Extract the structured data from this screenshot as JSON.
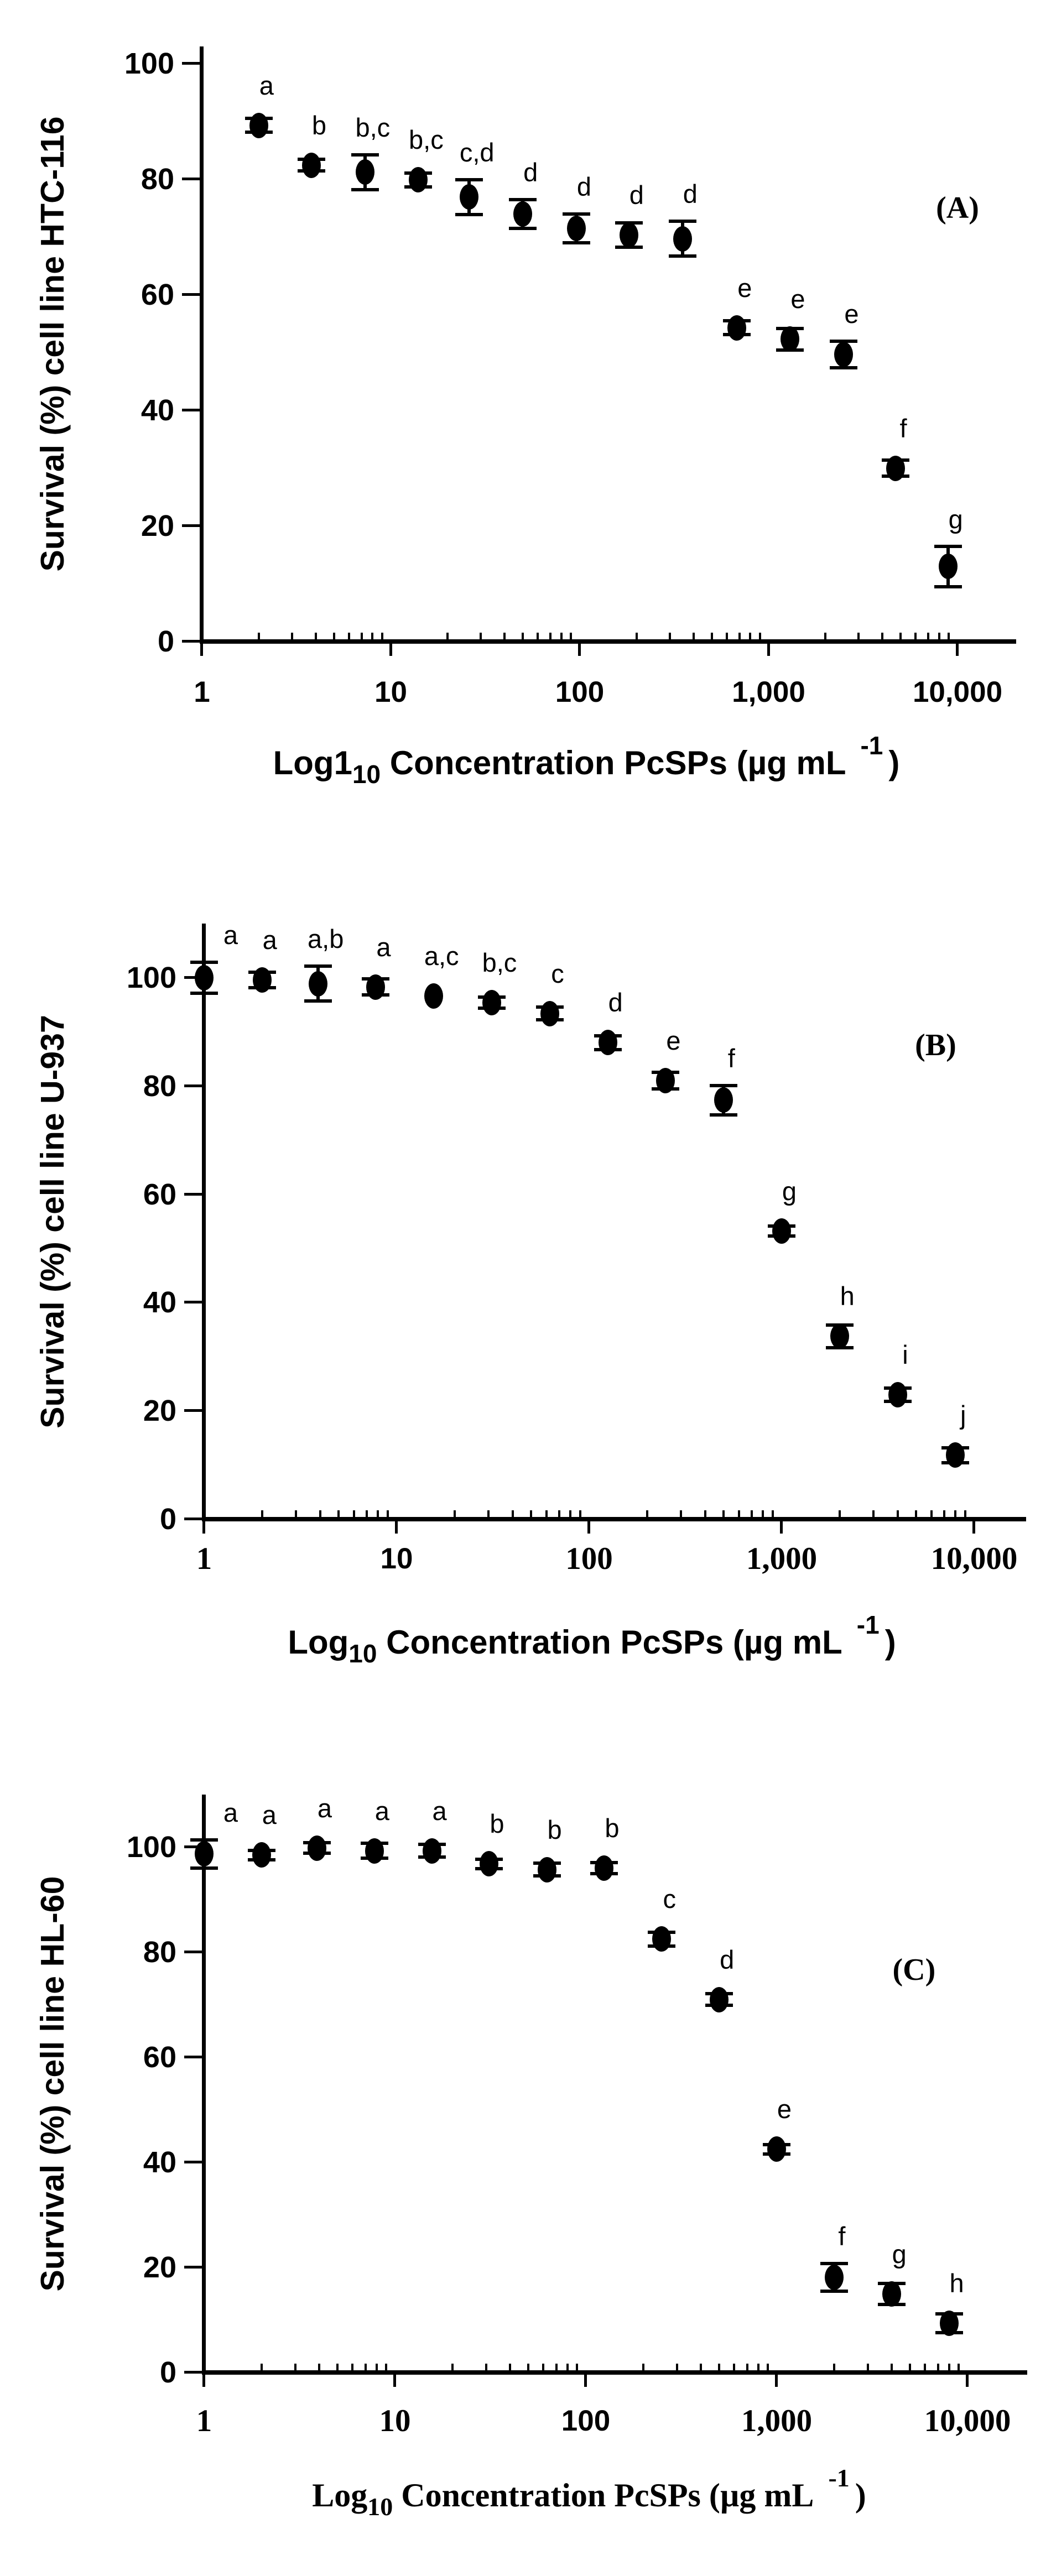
{
  "page": {
    "background": "#ffffff",
    "ink_color": "#000000"
  },
  "chart_data": [
    {
      "type": "scatter",
      "panel": "A",
      "annotation": "(A)",
      "annotation_pos": {
        "logx": 4.0,
        "y": 75
      },
      "title": "",
      "ylabel": "Survival (%) cell line HTC-116",
      "xlabel": {
        "prefix": "Log1",
        "sub": "10",
        "mid": " Concentration PcSPs (µg mL",
        "sup": "-1",
        "end": ")"
      },
      "x_scale": "log10",
      "xlim": [
        1,
        20000
      ],
      "ylim": [
        0,
        103
      ],
      "x_ticks": [
        "1",
        "10",
        "100",
        "1,000",
        "10,000"
      ],
      "y_ticks": [
        0,
        20,
        40,
        60,
        80,
        100
      ],
      "grid": false,
      "marker": "filled-circle",
      "points": [
        {
          "x": 2,
          "y": 89.3,
          "err": 1.2,
          "sig": "a"
        },
        {
          "x": 3.8,
          "y": 82.4,
          "err": 1.0,
          "sig": "b"
        },
        {
          "x": 7.3,
          "y": 81.2,
          "err": 3.0,
          "sig": "b,c"
        },
        {
          "x": 14,
          "y": 79.9,
          "err": 1.2,
          "sig": "b,c"
        },
        {
          "x": 26,
          "y": 76.9,
          "err": 3.0,
          "sig": "c,d"
        },
        {
          "x": 50,
          "y": 74.0,
          "err": 2.5,
          "sig": "d"
        },
        {
          "x": 96,
          "y": 71.5,
          "err": 2.5,
          "sig": "d"
        },
        {
          "x": 182,
          "y": 70.3,
          "err": 2.1,
          "sig": "d"
        },
        {
          "x": 350,
          "y": 69.7,
          "err": 3.0,
          "sig": "d"
        },
        {
          "x": 680,
          "y": 54.3,
          "err": 1.2,
          "sig": "e"
        },
        {
          "x": 1300,
          "y": 52.3,
          "err": 1.9,
          "sig": "e"
        },
        {
          "x": 2500,
          "y": 49.7,
          "err": 2.3,
          "sig": "e"
        },
        {
          "x": 4700,
          "y": 30.0,
          "err": 1.4,
          "sig": "f"
        },
        {
          "x": 8900,
          "y": 13.0,
          "err": 3.5,
          "sig": "g"
        }
      ]
    },
    {
      "type": "scatter",
      "panel": "B",
      "annotation": "(B)",
      "annotation_pos": {
        "logx": 3.8,
        "y": 87.5
      },
      "title": "",
      "ylabel": "Survival (%) cell line U-937",
      "xlabel": {
        "prefix": "Log",
        "sub": "10",
        "mid": " Concentration PcSPs (µg mL",
        "sup": "-1",
        "end": ")"
      },
      "x_scale": "log10",
      "xlim": [
        1,
        20000
      ],
      "ylim": [
        0,
        110
      ],
      "x_ticks": [
        "1",
        "10",
        "100",
        "1,000",
        "10,000"
      ],
      "y_ticks": [
        0,
        20,
        40,
        60,
        80,
        100
      ],
      "grid": false,
      "marker": "filled-circle",
      "points": [
        {
          "x": 1,
          "y": 100.0,
          "err": 2.9,
          "sig": "a"
        },
        {
          "x": 2,
          "y": 99.6,
          "err": 1.4,
          "sig": "a"
        },
        {
          "x": 3.9,
          "y": 98.9,
          "err": 3.2,
          "sig": "a,b"
        },
        {
          "x": 7.8,
          "y": 98.3,
          "err": 1.5,
          "sig": "a"
        },
        {
          "x": 15.6,
          "y": 96.6,
          "err": 0,
          "sig": "a,c"
        },
        {
          "x": 31.2,
          "y": 95.4,
          "err": 1.0,
          "sig": "b,c"
        },
        {
          "x": 62.5,
          "y": 93.4,
          "err": 1.2,
          "sig": "c"
        },
        {
          "x": 125,
          "y": 88.0,
          "err": 1.3,
          "sig": "d"
        },
        {
          "x": 250,
          "y": 81.0,
          "err": 1.5,
          "sig": "e"
        },
        {
          "x": 500,
          "y": 77.4,
          "err": 2.7,
          "sig": "f"
        },
        {
          "x": 1000,
          "y": 53.2,
          "err": 0.9,
          "sig": "g"
        },
        {
          "x": 2000,
          "y": 33.8,
          "err": 2.1,
          "sig": "h"
        },
        {
          "x": 4000,
          "y": 23.0,
          "err": 1.2,
          "sig": "i"
        },
        {
          "x": 8000,
          "y": 11.8,
          "err": 1.4,
          "sig": "j"
        }
      ]
    },
    {
      "type": "scatter",
      "panel": "C",
      "annotation": "(C)",
      "annotation_pos": {
        "logx": 3.72,
        "y": 76.6
      },
      "title": "",
      "ylabel": "Survival (%) cell line HL-60",
      "xlabel": {
        "prefix": "Log",
        "sub": "10",
        "mid": " Concentration PcSPs (µg mL",
        "sup": "-1",
        "end": ")"
      },
      "x_scale": "log10",
      "xlim": [
        1,
        20000
      ],
      "ylim": [
        0,
        110
      ],
      "x_ticks": [
        "1",
        "10",
        "100",
        "1,000",
        "10,000"
      ],
      "y_ticks": [
        0,
        20,
        40,
        60,
        80,
        100
      ],
      "grid": false,
      "marker": "filled-circle",
      "points": [
        {
          "x": 1,
          "y": 98.7,
          "err": 2.7,
          "sig": "a"
        },
        {
          "x": 2,
          "y": 98.5,
          "err": 0.9,
          "sig": "a"
        },
        {
          "x": 3.9,
          "y": 99.8,
          "err": 1.0,
          "sig": "a"
        },
        {
          "x": 7.8,
          "y": 99.3,
          "err": 1.4,
          "sig": "a"
        },
        {
          "x": 15.6,
          "y": 99.3,
          "err": 1.2,
          "sig": "a"
        },
        {
          "x": 31.2,
          "y": 96.8,
          "err": 0.9,
          "sig": "b"
        },
        {
          "x": 62.5,
          "y": 95.7,
          "err": 1.2,
          "sig": "b"
        },
        {
          "x": 125,
          "y": 96.0,
          "err": 1.1,
          "sig": "b"
        },
        {
          "x": 250,
          "y": 82.5,
          "err": 1.3,
          "sig": "c"
        },
        {
          "x": 500,
          "y": 71.0,
          "err": 1.1,
          "sig": "d"
        },
        {
          "x": 1000,
          "y": 42.5,
          "err": 0.9,
          "sig": "e"
        },
        {
          "x": 2000,
          "y": 18.1,
          "err": 2.6,
          "sig": "f"
        },
        {
          "x": 4000,
          "y": 14.9,
          "err": 2.0,
          "sig": "g"
        },
        {
          "x": 8000,
          "y": 9.4,
          "err": 1.8,
          "sig": "h"
        }
      ]
    }
  ]
}
